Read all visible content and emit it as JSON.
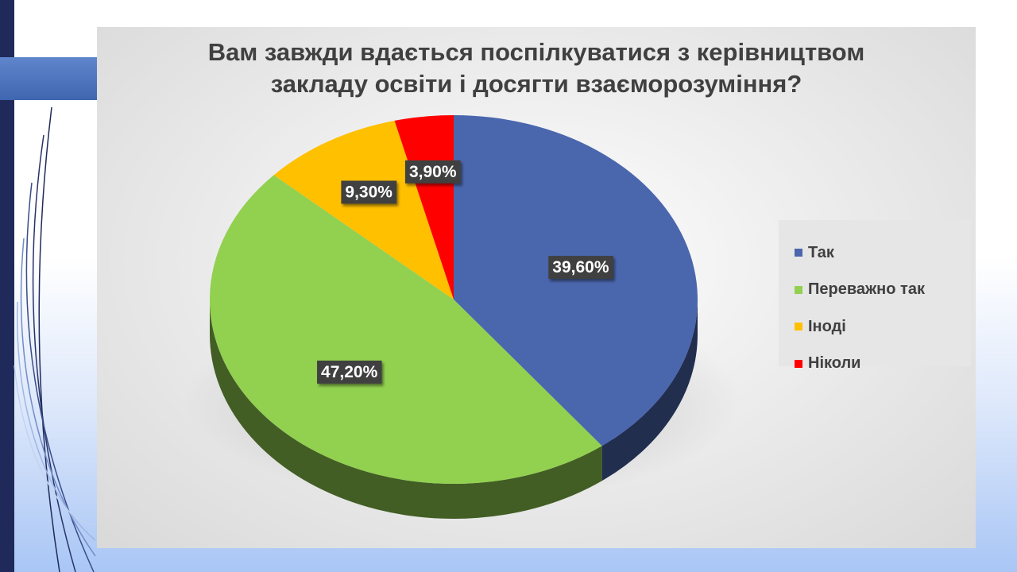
{
  "chart_data": {
    "type": "pie",
    "title": "Вам завжди вдається поспілкуватися з керівництвом\nзакладу освіти і досягти взаєморозуміння?",
    "categories": [
      "Так",
      "Переважно так",
      "Іноді",
      "Ніколи"
    ],
    "values": [
      39.6,
      47.2,
      9.3,
      3.9
    ],
    "data_labels": [
      "39,60%",
      "47,20%",
      "9,30%",
      "3,90%"
    ],
    "colors": [
      "#4a66ad",
      "#92d050",
      "#ffc000",
      "#ff0000"
    ],
    "legend_position": "right",
    "style": "3d"
  },
  "slide": {
    "background_colors": [
      "#ffffff",
      "#a9c6f5"
    ],
    "accent_color": "#4a6fbb",
    "sidebar_color": "#1f2a5a"
  }
}
